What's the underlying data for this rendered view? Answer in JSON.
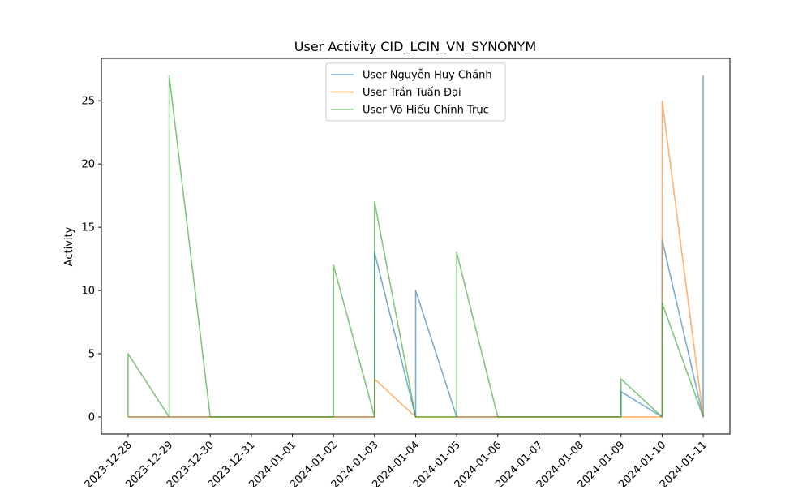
{
  "chart_data": {
    "type": "line",
    "title": "User Activity CID_LCIN_VN_SYNONYM",
    "xlabel": "",
    "ylabel": "Activity",
    "ylim": [
      -1.35,
      28.35
    ],
    "yticks": [
      0,
      5,
      10,
      15,
      20,
      25
    ],
    "x_ticks": [
      "2023-12-28",
      "2023-12-29",
      "2023-12-30",
      "2023-12-31",
      "2024-01-01",
      "2024-01-02",
      "2024-01-03",
      "2024-01-04",
      "2024-01-05",
      "2024-01-06",
      "2024-01-07",
      "2024-01-08",
      "2024-01-09",
      "2024-01-10",
      "2024-01-11"
    ],
    "xlim": [
      "2023-12-27 08:24",
      "2024-01-11 15:36"
    ],
    "grid": false,
    "legend_position": "top-center",
    "series": [
      {
        "name": "User Nguyễn Huy Chánh",
        "color": "#1f77b4",
        "points": [
          [
            "2023-12-28",
            0
          ],
          [
            "2023-12-29",
            0
          ],
          [
            "2023-12-30",
            0
          ],
          [
            "2024-01-02",
            0
          ],
          [
            "2024-01-03",
            0
          ],
          [
            "2024-01-03",
            13
          ],
          [
            "2024-01-04",
            0
          ],
          [
            "2024-01-04",
            10
          ],
          [
            "2024-01-05",
            0
          ],
          [
            "2024-01-06",
            0
          ],
          [
            "2024-01-09",
            0
          ],
          [
            "2024-01-09",
            2
          ],
          [
            "2024-01-10",
            0
          ],
          [
            "2024-01-10",
            14
          ],
          [
            "2024-01-11",
            0
          ],
          [
            "2024-01-11",
            27
          ]
        ]
      },
      {
        "name": "User Trần Tuấn Đại",
        "color": "#ff7f0e",
        "points": [
          [
            "2023-12-28",
            0
          ],
          [
            "2023-12-29",
            0
          ],
          [
            "2023-12-30",
            0
          ],
          [
            "2024-01-02",
            0
          ],
          [
            "2024-01-03",
            0
          ],
          [
            "2024-01-03",
            3
          ],
          [
            "2024-01-04",
            0
          ],
          [
            "2024-01-05",
            0
          ],
          [
            "2024-01-06",
            0
          ],
          [
            "2024-01-09",
            0
          ],
          [
            "2024-01-10",
            0
          ],
          [
            "2024-01-10",
            25
          ],
          [
            "2024-01-11",
            0
          ]
        ]
      },
      {
        "name": "User Võ Hiếu Chính Trực",
        "color": "#2ca02c",
        "points": [
          [
            "2023-12-28",
            0
          ],
          [
            "2023-12-28",
            5
          ],
          [
            "2023-12-29",
            0
          ],
          [
            "2023-12-29",
            27
          ],
          [
            "2023-12-30",
            0
          ],
          [
            "2024-01-02",
            0
          ],
          [
            "2024-01-02",
            12
          ],
          [
            "2024-01-03",
            0
          ],
          [
            "2024-01-03",
            17
          ],
          [
            "2024-01-04",
            0
          ],
          [
            "2024-01-05",
            0
          ],
          [
            "2024-01-05",
            13
          ],
          [
            "2024-01-06",
            0
          ],
          [
            "2024-01-09",
            0
          ],
          [
            "2024-01-09",
            3
          ],
          [
            "2024-01-10",
            0
          ],
          [
            "2024-01-10",
            9
          ],
          [
            "2024-01-11",
            0
          ]
        ]
      }
    ]
  }
}
